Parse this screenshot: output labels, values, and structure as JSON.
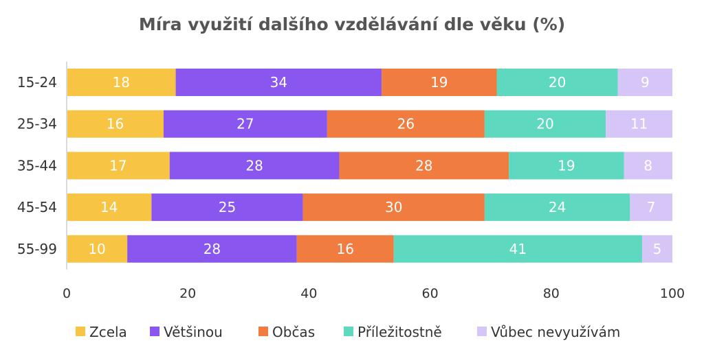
{
  "chart_data": {
    "type": "bar",
    "orientation": "horizontal",
    "stacked": true,
    "title": "Míra využití dalšího vzdělávání dle věku (%)",
    "categories": [
      "15-24",
      "25-34",
      "35-44",
      "45-54",
      "55-99"
    ],
    "series": [
      {
        "name": "Zcela",
        "color": "#F7C443",
        "values": [
          18,
          16,
          17,
          14,
          10
        ]
      },
      {
        "name": "Většinou",
        "color": "#8A56F0",
        "values": [
          34,
          27,
          28,
          25,
          28
        ]
      },
      {
        "name": "Občas",
        "color": "#F07C3F",
        "values": [
          19,
          26,
          28,
          30,
          16
        ]
      },
      {
        "name": "Příležitostně",
        "color": "#5ED8BE",
        "values": [
          20,
          20,
          19,
          24,
          41
        ]
      },
      {
        "name": "Vůbec nevyužívám",
        "color": "#D6C6F8",
        "values": [
          9,
          11,
          8,
          7,
          5
        ]
      }
    ],
    "xlim": [
      0,
      100
    ],
    "xticks": [
      "0",
      "20",
      "40",
      "60",
      "80",
      "100"
    ],
    "grid": false,
    "legend": "bottom"
  }
}
